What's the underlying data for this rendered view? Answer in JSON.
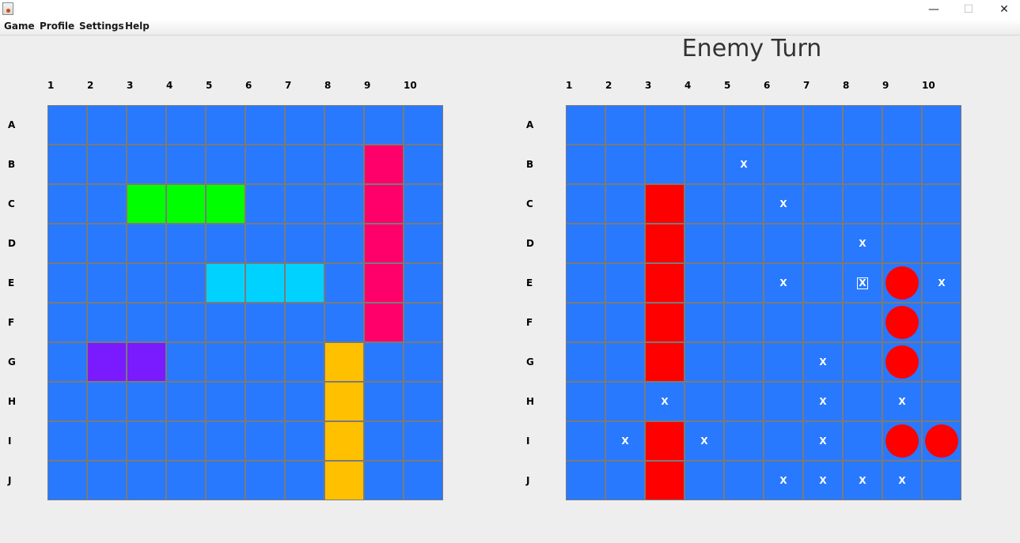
{
  "window": {
    "minimize_glyph": "—",
    "maximize_glyph": "☐",
    "close_glyph": "✕"
  },
  "menu": [
    "Game",
    "Profile",
    "Settings",
    "Help"
  ],
  "status": {
    "turn_text": "Enemy Turn"
  },
  "columns": [
    "1",
    "2",
    "3",
    "4",
    "5",
    "6",
    "7",
    "8",
    "9",
    "10"
  ],
  "rows": [
    "A",
    "B",
    "C",
    "D",
    "E",
    "F",
    "G",
    "H",
    "I",
    "J"
  ],
  "colors": {
    "water": "#2979ff",
    "ship_destroyer": "#7a1bff",
    "ship_cruiser": "#00ff00",
    "ship_submarine": "#00d2ff",
    "ship_battleship": "#ffc000",
    "ship_carrier": "#ff006a",
    "enemy_sunk": "#ff0000",
    "hit_marker": "#ff0000"
  },
  "player_board": {
    "ships": [
      {
        "name": "destroyer",
        "color_key": "ship_destroyer",
        "cells": [
          "G2",
          "G3"
        ]
      },
      {
        "name": "cruiser",
        "color_key": "ship_cruiser",
        "cells": [
          "C3",
          "C4",
          "C5"
        ]
      },
      {
        "name": "submarine",
        "color_key": "ship_submarine",
        "cells": [
          "E5",
          "E6",
          "E7"
        ]
      },
      {
        "name": "battleship",
        "color_key": "ship_battleship",
        "cells": [
          "G8",
          "H8",
          "I8",
          "J8"
        ]
      },
      {
        "name": "carrier",
        "color_key": "ship_carrier",
        "cells": [
          "B9",
          "C9",
          "D9",
          "E9",
          "F9"
        ]
      }
    ]
  },
  "enemy_board": {
    "miss_symbol": "X",
    "sunk_cells": [
      "C3",
      "D3",
      "E3",
      "F3",
      "G3",
      "I3",
      "J3"
    ],
    "hits": [
      "E9",
      "F9",
      "G9",
      "I9",
      "I10"
    ],
    "misses": [
      "B5",
      "C6",
      "D8",
      "E6",
      "E8",
      "E10",
      "G7",
      "H3",
      "H7",
      "H9",
      "I2",
      "I4",
      "I7",
      "J6",
      "J7",
      "J8",
      "J9"
    ],
    "boxed_miss": "E8"
  }
}
